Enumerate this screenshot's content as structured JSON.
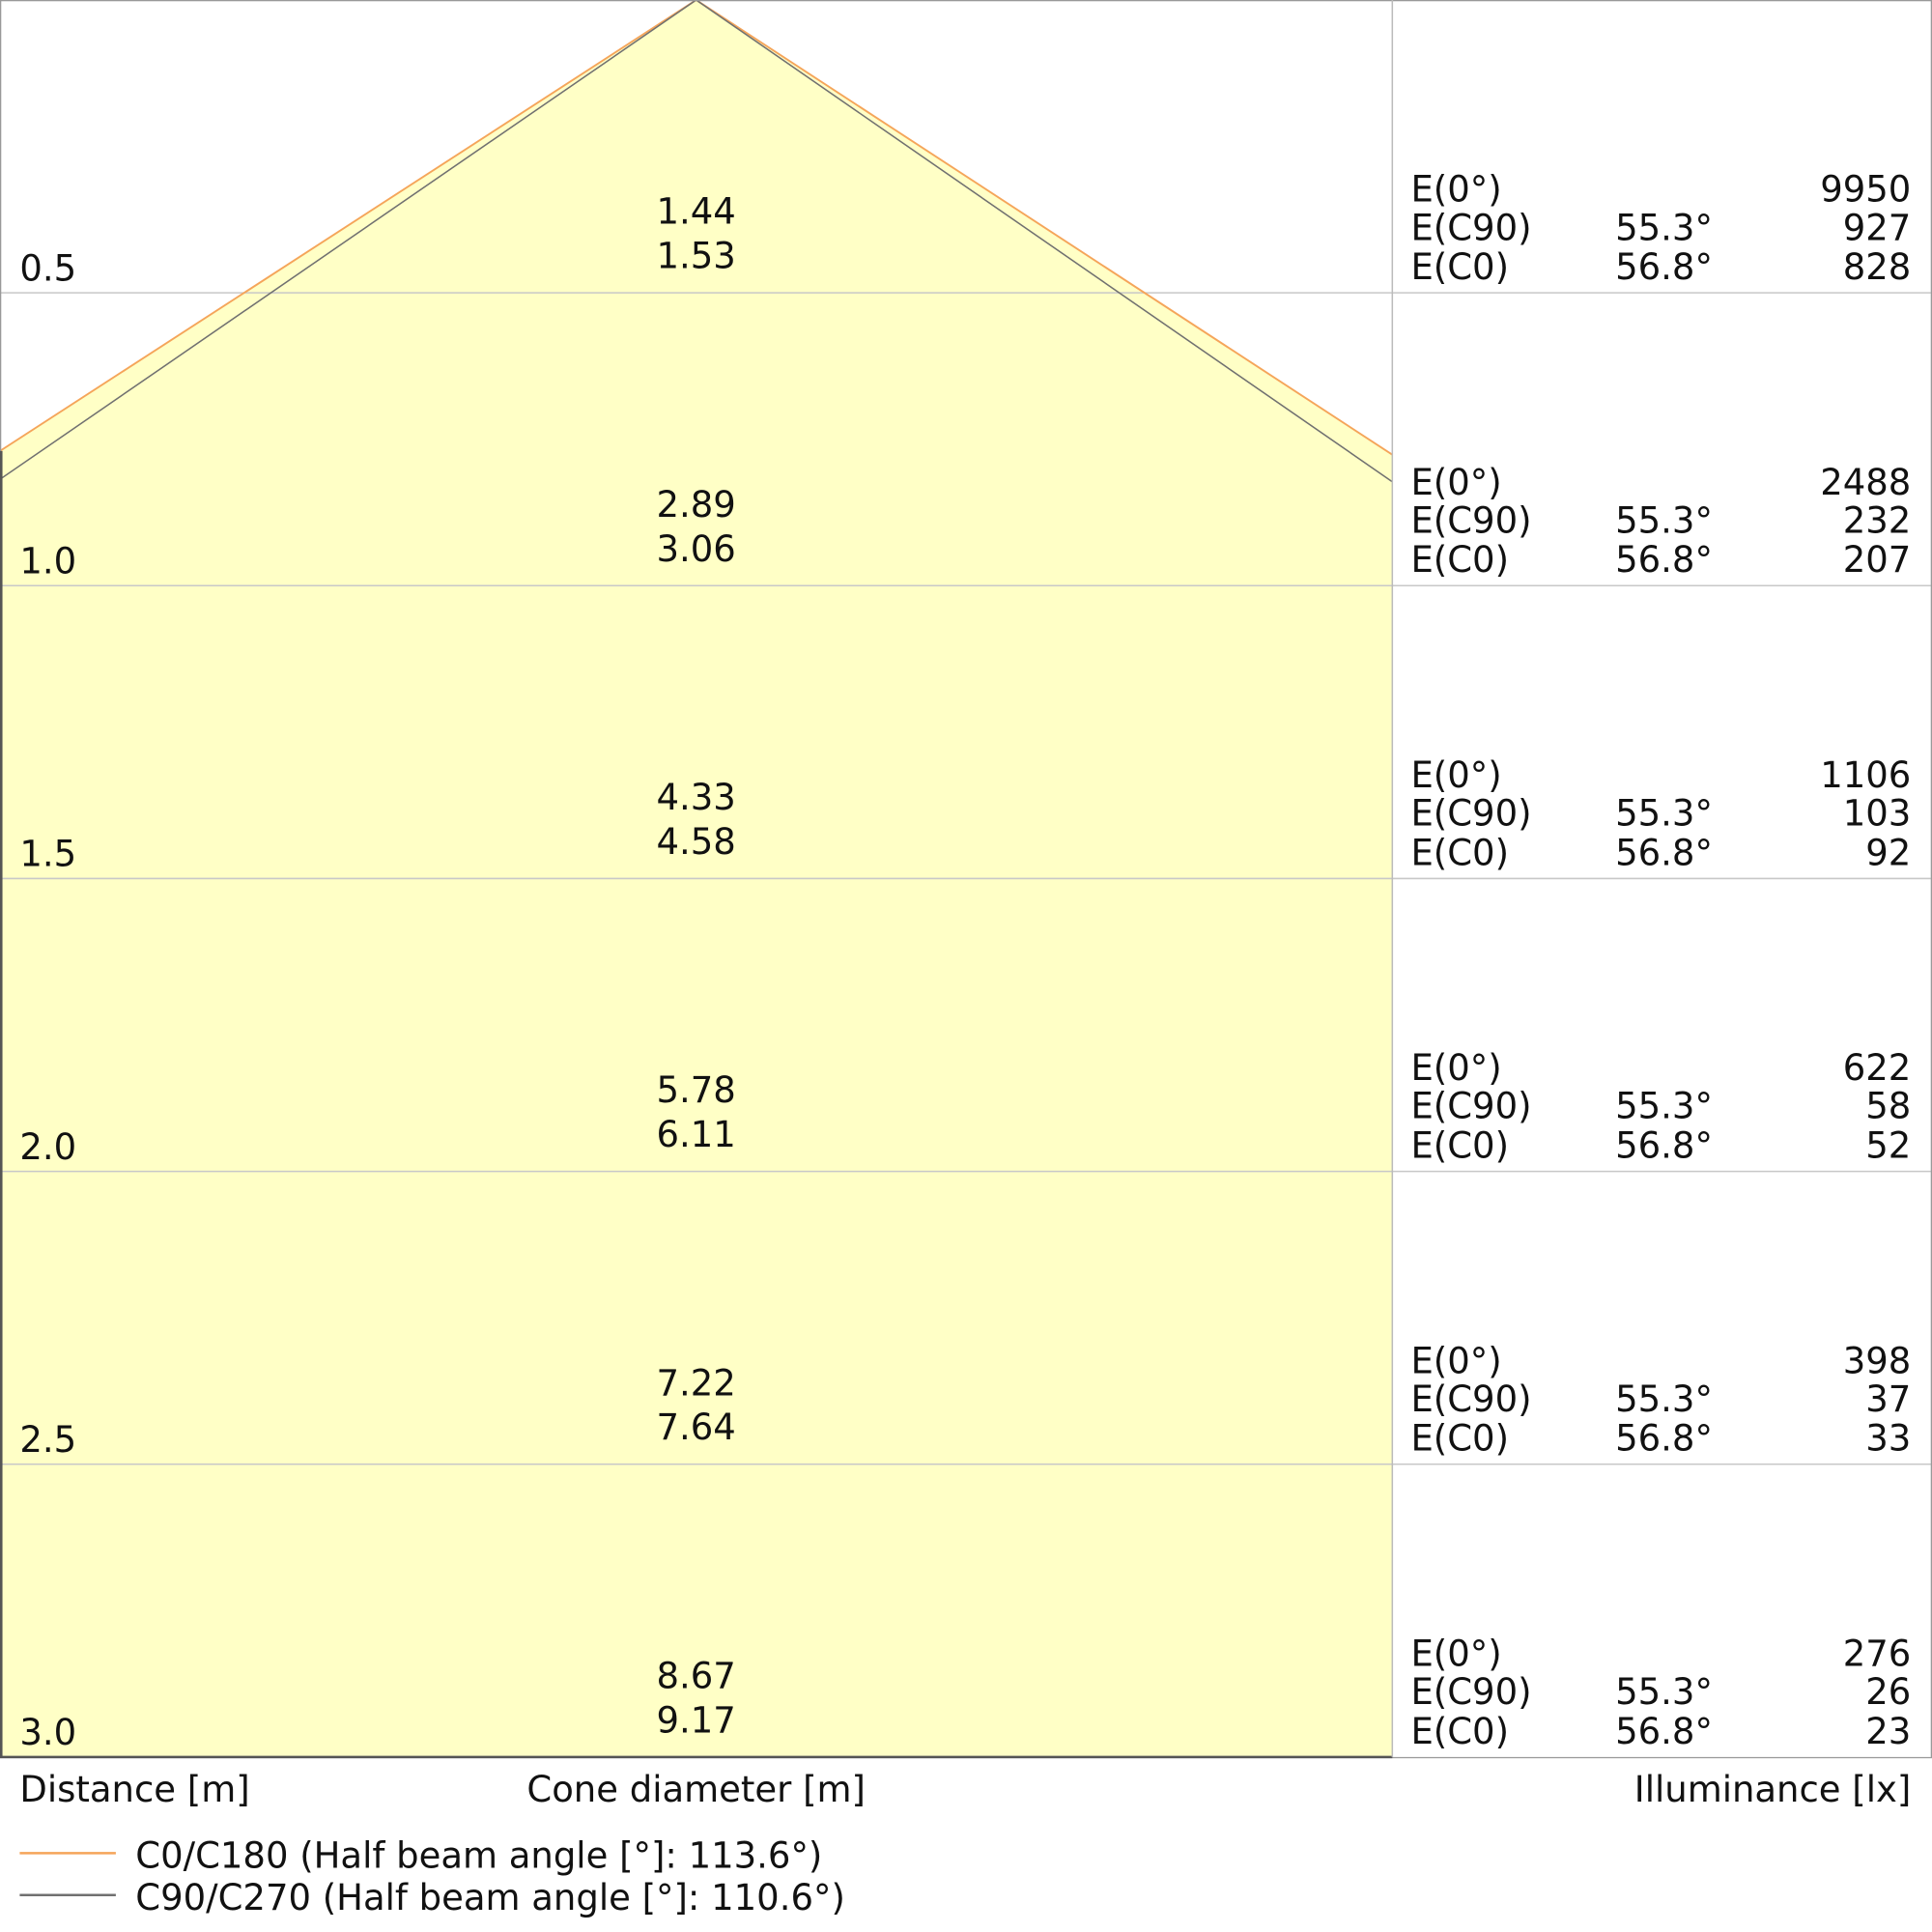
{
  "chart_data": {
    "type": "cone-diagram",
    "xlabel_left": "Distance [m]",
    "xlabel_center": "Cone diameter [m]",
    "xlabel_right": "Illuminance [lx]",
    "distances": [
      "0.5",
      "1.0",
      "1.5",
      "2.0",
      "2.5",
      "3.0"
    ],
    "cone_diameter_c90": [
      "1.44",
      "2.89",
      "4.33",
      "5.78",
      "7.22",
      "8.67"
    ],
    "cone_diameter_c0": [
      "1.53",
      "3.06",
      "4.58",
      "6.11",
      "7.64",
      "9.17"
    ],
    "row_labels": [
      "E(0°)",
      "E(C90)",
      "E(C0)"
    ],
    "angle_c90": "55.3°",
    "angle_c0": "56.8°",
    "e_0": [
      "9950",
      "2488",
      "1106",
      "622",
      "398",
      "276"
    ],
    "e_c90": [
      "927",
      "232",
      "103",
      "58",
      "37",
      "26"
    ],
    "e_c0": [
      "828",
      "207",
      "92",
      "52",
      "33",
      "23"
    ],
    "legend": [
      {
        "name": "C0/C180 (Half beam angle [°]: 113.6°)",
        "color": "#f5a55a",
        "half_beam_angle": 113.6
      },
      {
        "name": "C90/C270 (Half beam angle [°]: 110.6°)",
        "color": "#707070",
        "half_beam_angle": 110.6
      }
    ],
    "fill_color": "#ffffc6",
    "grid": true
  }
}
